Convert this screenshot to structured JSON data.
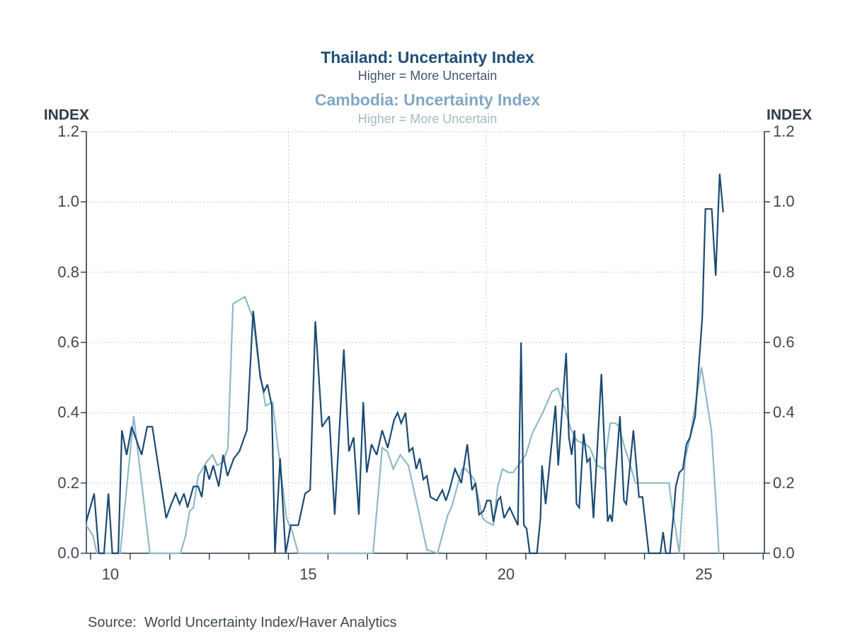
{
  "titles": {
    "series1_title": "Thailand: Uncertainty Index",
    "series1_subtitle": "Higher = More Uncertain",
    "series2_title": "Cambodia: Uncertainty Index",
    "series2_subtitle": "Higher = More Uncertain"
  },
  "axis": {
    "left_label": "INDEX",
    "right_label": "INDEX",
    "y_tick_labels": [
      "0.0",
      "0.2",
      "0.4",
      "0.6",
      "0.8",
      "1.0",
      "1.2"
    ],
    "x_tick_labels": [
      "10",
      "15",
      "20",
      "25"
    ]
  },
  "source": {
    "text": "Source:  World Uncertainty Index/Haver Analytics"
  },
  "colors": {
    "thailand_line": "#1b4a72",
    "cambodia_line": "#8fb9c7",
    "spine": "#2b3a4d",
    "gridline": "#c9c9c9",
    "tick_text": "#3d4754"
  },
  "chart_data": {
    "type": "line",
    "title": "Thailand: Uncertainty Index / Cambodia: Uncertainty Index",
    "subtitle": "Higher = More Uncertain",
    "ylabel": "INDEX",
    "ylim": [
      0,
      1.2
    ],
    "xlim": [
      2009.89,
      2027.05
    ],
    "grid": "dotted",
    "legend_position": "none",
    "y_grid_values": [
      0.2,
      0.4,
      0.6,
      0.8,
      1.0,
      1.2
    ],
    "x_grid_years": [
      2015,
      2020,
      2025
    ],
    "x_minor_tick_years": [
      2010,
      2011,
      2012,
      2013,
      2014,
      2015,
      2016,
      2017,
      2018,
      2019,
      2020,
      2021,
      2022,
      2023,
      2024,
      2025,
      2026,
      2027
    ],
    "x_label_positions": [
      {
        "label": "10",
        "year": 2010.5
      },
      {
        "label": "15",
        "year": 2015.5
      },
      {
        "label": "20",
        "year": 2020.5
      },
      {
        "label": "25",
        "year": 2025.5
      }
    ],
    "series": [
      {
        "name": "Cambodia: Uncertainty Index",
        "color": "#8fb9c7",
        "points": [
          [
            2009.89,
            0.08
          ],
          [
            2010.06,
            0.05
          ],
          [
            2010.16,
            0.0
          ],
          [
            2010.75,
            0.0
          ],
          [
            2011.09,
            0.39
          ],
          [
            2011.5,
            0.0
          ],
          [
            2012.27,
            0.0
          ],
          [
            2012.4,
            0.05
          ],
          [
            2012.5,
            0.12
          ],
          [
            2012.6,
            0.13
          ],
          [
            2012.72,
            0.22
          ],
          [
            2012.93,
            0.26
          ],
          [
            2013.08,
            0.28
          ],
          [
            2013.2,
            0.25
          ],
          [
            2013.35,
            0.26
          ],
          [
            2013.47,
            0.3
          ],
          [
            2013.6,
            0.71
          ],
          [
            2013.9,
            0.73
          ],
          [
            2014.1,
            0.67
          ],
          [
            2014.26,
            0.53
          ],
          [
            2014.42,
            0.42
          ],
          [
            2014.6,
            0.43
          ],
          [
            2014.78,
            0.26
          ],
          [
            2014.95,
            0.1
          ],
          [
            2015.1,
            0.06
          ],
          [
            2015.25,
            0.0
          ],
          [
            2016.95,
            0.0
          ],
          [
            2017.14,
            0.0
          ],
          [
            2017.37,
            0.3
          ],
          [
            2017.5,
            0.29
          ],
          [
            2017.65,
            0.24
          ],
          [
            2017.83,
            0.28
          ],
          [
            2018.03,
            0.25
          ],
          [
            2018.27,
            0.13
          ],
          [
            2018.5,
            0.01
          ],
          [
            2018.77,
            0.0
          ],
          [
            2019.03,
            0.11
          ],
          [
            2019.12,
            0.13
          ],
          [
            2019.39,
            0.24
          ],
          [
            2019.48,
            0.24
          ],
          [
            2019.7,
            0.21
          ],
          [
            2019.91,
            0.1
          ],
          [
            2020.0,
            0.09
          ],
          [
            2020.18,
            0.08
          ],
          [
            2020.29,
            0.19
          ],
          [
            2020.41,
            0.24
          ],
          [
            2020.56,
            0.23
          ],
          [
            2020.68,
            0.23
          ],
          [
            2021.0,
            0.28
          ],
          [
            2021.16,
            0.34
          ],
          [
            2021.43,
            0.4
          ],
          [
            2021.66,
            0.46
          ],
          [
            2021.81,
            0.47
          ],
          [
            2021.99,
            0.41
          ],
          [
            2022.15,
            0.35
          ],
          [
            2022.3,
            0.32
          ],
          [
            2022.51,
            0.31
          ],
          [
            2022.62,
            0.3
          ],
          [
            2022.8,
            0.25
          ],
          [
            2022.98,
            0.24
          ],
          [
            2023.13,
            0.37
          ],
          [
            2023.27,
            0.37
          ],
          [
            2023.36,
            0.36
          ],
          [
            2023.5,
            0.3
          ],
          [
            2023.59,
            0.27
          ],
          [
            2023.77,
            0.2
          ],
          [
            2023.9,
            0.2
          ],
          [
            2024.62,
            0.2
          ],
          [
            2024.65,
            0.17
          ],
          [
            2024.88,
            0.0
          ],
          [
            2025.03,
            0.27
          ],
          [
            2025.15,
            0.33
          ],
          [
            2025.44,
            0.53
          ],
          [
            2025.69,
            0.35
          ],
          [
            2025.83,
            0.1
          ],
          [
            2025.88,
            0.0
          ]
        ]
      },
      {
        "name": "Thailand: Uncertainty Index",
        "color": "#1b4a72",
        "points": [
          [
            2009.89,
            0.09
          ],
          [
            2010.09,
            0.17
          ],
          [
            2010.21,
            0.0
          ],
          [
            2010.34,
            0.0
          ],
          [
            2010.45,
            0.17
          ],
          [
            2010.55,
            0.0
          ],
          [
            2010.7,
            0.0
          ],
          [
            2010.79,
            0.35
          ],
          [
            2010.91,
            0.28
          ],
          [
            2011.04,
            0.36
          ],
          [
            2011.29,
            0.28
          ],
          [
            2011.43,
            0.36
          ],
          [
            2011.56,
            0.36
          ],
          [
            2011.91,
            0.1
          ],
          [
            2012.04,
            0.14
          ],
          [
            2012.15,
            0.17
          ],
          [
            2012.25,
            0.14
          ],
          [
            2012.36,
            0.17
          ],
          [
            2012.45,
            0.13
          ],
          [
            2012.6,
            0.19
          ],
          [
            2012.72,
            0.19
          ],
          [
            2012.81,
            0.16
          ],
          [
            2012.9,
            0.25
          ],
          [
            2013.0,
            0.21
          ],
          [
            2013.1,
            0.25
          ],
          [
            2013.24,
            0.19
          ],
          [
            2013.35,
            0.28
          ],
          [
            2013.46,
            0.22
          ],
          [
            2013.62,
            0.27
          ],
          [
            2013.76,
            0.29
          ],
          [
            2013.95,
            0.35
          ],
          [
            2014.11,
            0.69
          ],
          [
            2014.29,
            0.5
          ],
          [
            2014.38,
            0.46
          ],
          [
            2014.47,
            0.48
          ],
          [
            2014.58,
            0.42
          ],
          [
            2014.66,
            0.0
          ],
          [
            2014.79,
            0.27
          ],
          [
            2014.93,
            0.0
          ],
          [
            2015.06,
            0.08
          ],
          [
            2015.25,
            0.08
          ],
          [
            2015.42,
            0.17
          ],
          [
            2015.55,
            0.18
          ],
          [
            2015.68,
            0.66
          ],
          [
            2015.85,
            0.36
          ],
          [
            2016.03,
            0.39
          ],
          [
            2016.17,
            0.11
          ],
          [
            2016.4,
            0.58
          ],
          [
            2016.53,
            0.29
          ],
          [
            2016.65,
            0.33
          ],
          [
            2016.78,
            0.11
          ],
          [
            2016.89,
            0.43
          ],
          [
            2016.98,
            0.23
          ],
          [
            2017.1,
            0.31
          ],
          [
            2017.23,
            0.28
          ],
          [
            2017.37,
            0.35
          ],
          [
            2017.51,
            0.3
          ],
          [
            2017.67,
            0.38
          ],
          [
            2017.76,
            0.4
          ],
          [
            2017.85,
            0.37
          ],
          [
            2017.96,
            0.4
          ],
          [
            2018.05,
            0.29
          ],
          [
            2018.14,
            0.3
          ],
          [
            2018.23,
            0.24
          ],
          [
            2018.32,
            0.27
          ],
          [
            2018.41,
            0.21
          ],
          [
            2018.5,
            0.22
          ],
          [
            2018.59,
            0.16
          ],
          [
            2018.75,
            0.15
          ],
          [
            2018.89,
            0.18
          ],
          [
            2018.98,
            0.15
          ],
          [
            2019.07,
            0.18
          ],
          [
            2019.21,
            0.24
          ],
          [
            2019.37,
            0.2
          ],
          [
            2019.52,
            0.31
          ],
          [
            2019.64,
            0.18
          ],
          [
            2019.73,
            0.2
          ],
          [
            2019.82,
            0.11
          ],
          [
            2019.93,
            0.12
          ],
          [
            2020.02,
            0.15
          ],
          [
            2020.11,
            0.15
          ],
          [
            2020.18,
            0.09
          ],
          [
            2020.29,
            0.15
          ],
          [
            2020.36,
            0.16
          ],
          [
            2020.45,
            0.1
          ],
          [
            2020.59,
            0.13
          ],
          [
            2020.8,
            0.08
          ],
          [
            2020.88,
            0.6
          ],
          [
            2020.95,
            0.08
          ],
          [
            2021.02,
            0.07
          ],
          [
            2021.1,
            0.0
          ],
          [
            2021.28,
            0.0
          ],
          [
            2021.37,
            0.1
          ],
          [
            2021.41,
            0.25
          ],
          [
            2021.5,
            0.14
          ],
          [
            2021.75,
            0.42
          ],
          [
            2021.82,
            0.25
          ],
          [
            2022.02,
            0.57
          ],
          [
            2022.09,
            0.33
          ],
          [
            2022.16,
            0.28
          ],
          [
            2022.23,
            0.35
          ],
          [
            2022.28,
            0.14
          ],
          [
            2022.35,
            0.13
          ],
          [
            2022.46,
            0.34
          ],
          [
            2022.55,
            0.26
          ],
          [
            2022.62,
            0.27
          ],
          [
            2022.71,
            0.1
          ],
          [
            2022.91,
            0.51
          ],
          [
            2023.07,
            0.09
          ],
          [
            2023.13,
            0.11
          ],
          [
            2023.18,
            0.09
          ],
          [
            2023.38,
            0.39
          ],
          [
            2023.48,
            0.15
          ],
          [
            2023.54,
            0.14
          ],
          [
            2023.72,
            0.35
          ],
          [
            2023.86,
            0.16
          ],
          [
            2023.95,
            0.16
          ],
          [
            2024.04,
            0.07
          ],
          [
            2024.11,
            0.0
          ],
          [
            2024.4,
            0.0
          ],
          [
            2024.47,
            0.06
          ],
          [
            2024.54,
            0.0
          ],
          [
            2024.64,
            0.0
          ],
          [
            2024.75,
            0.13
          ],
          [
            2024.79,
            0.19
          ],
          [
            2024.88,
            0.23
          ],
          [
            2024.97,
            0.24
          ],
          [
            2025.06,
            0.31
          ],
          [
            2025.15,
            0.33
          ],
          [
            2025.28,
            0.39
          ],
          [
            2025.46,
            0.67
          ],
          [
            2025.54,
            0.98
          ],
          [
            2025.7,
            0.98
          ],
          [
            2025.8,
            0.79
          ],
          [
            2025.9,
            1.08
          ],
          [
            2025.99,
            0.97
          ]
        ]
      }
    ]
  }
}
